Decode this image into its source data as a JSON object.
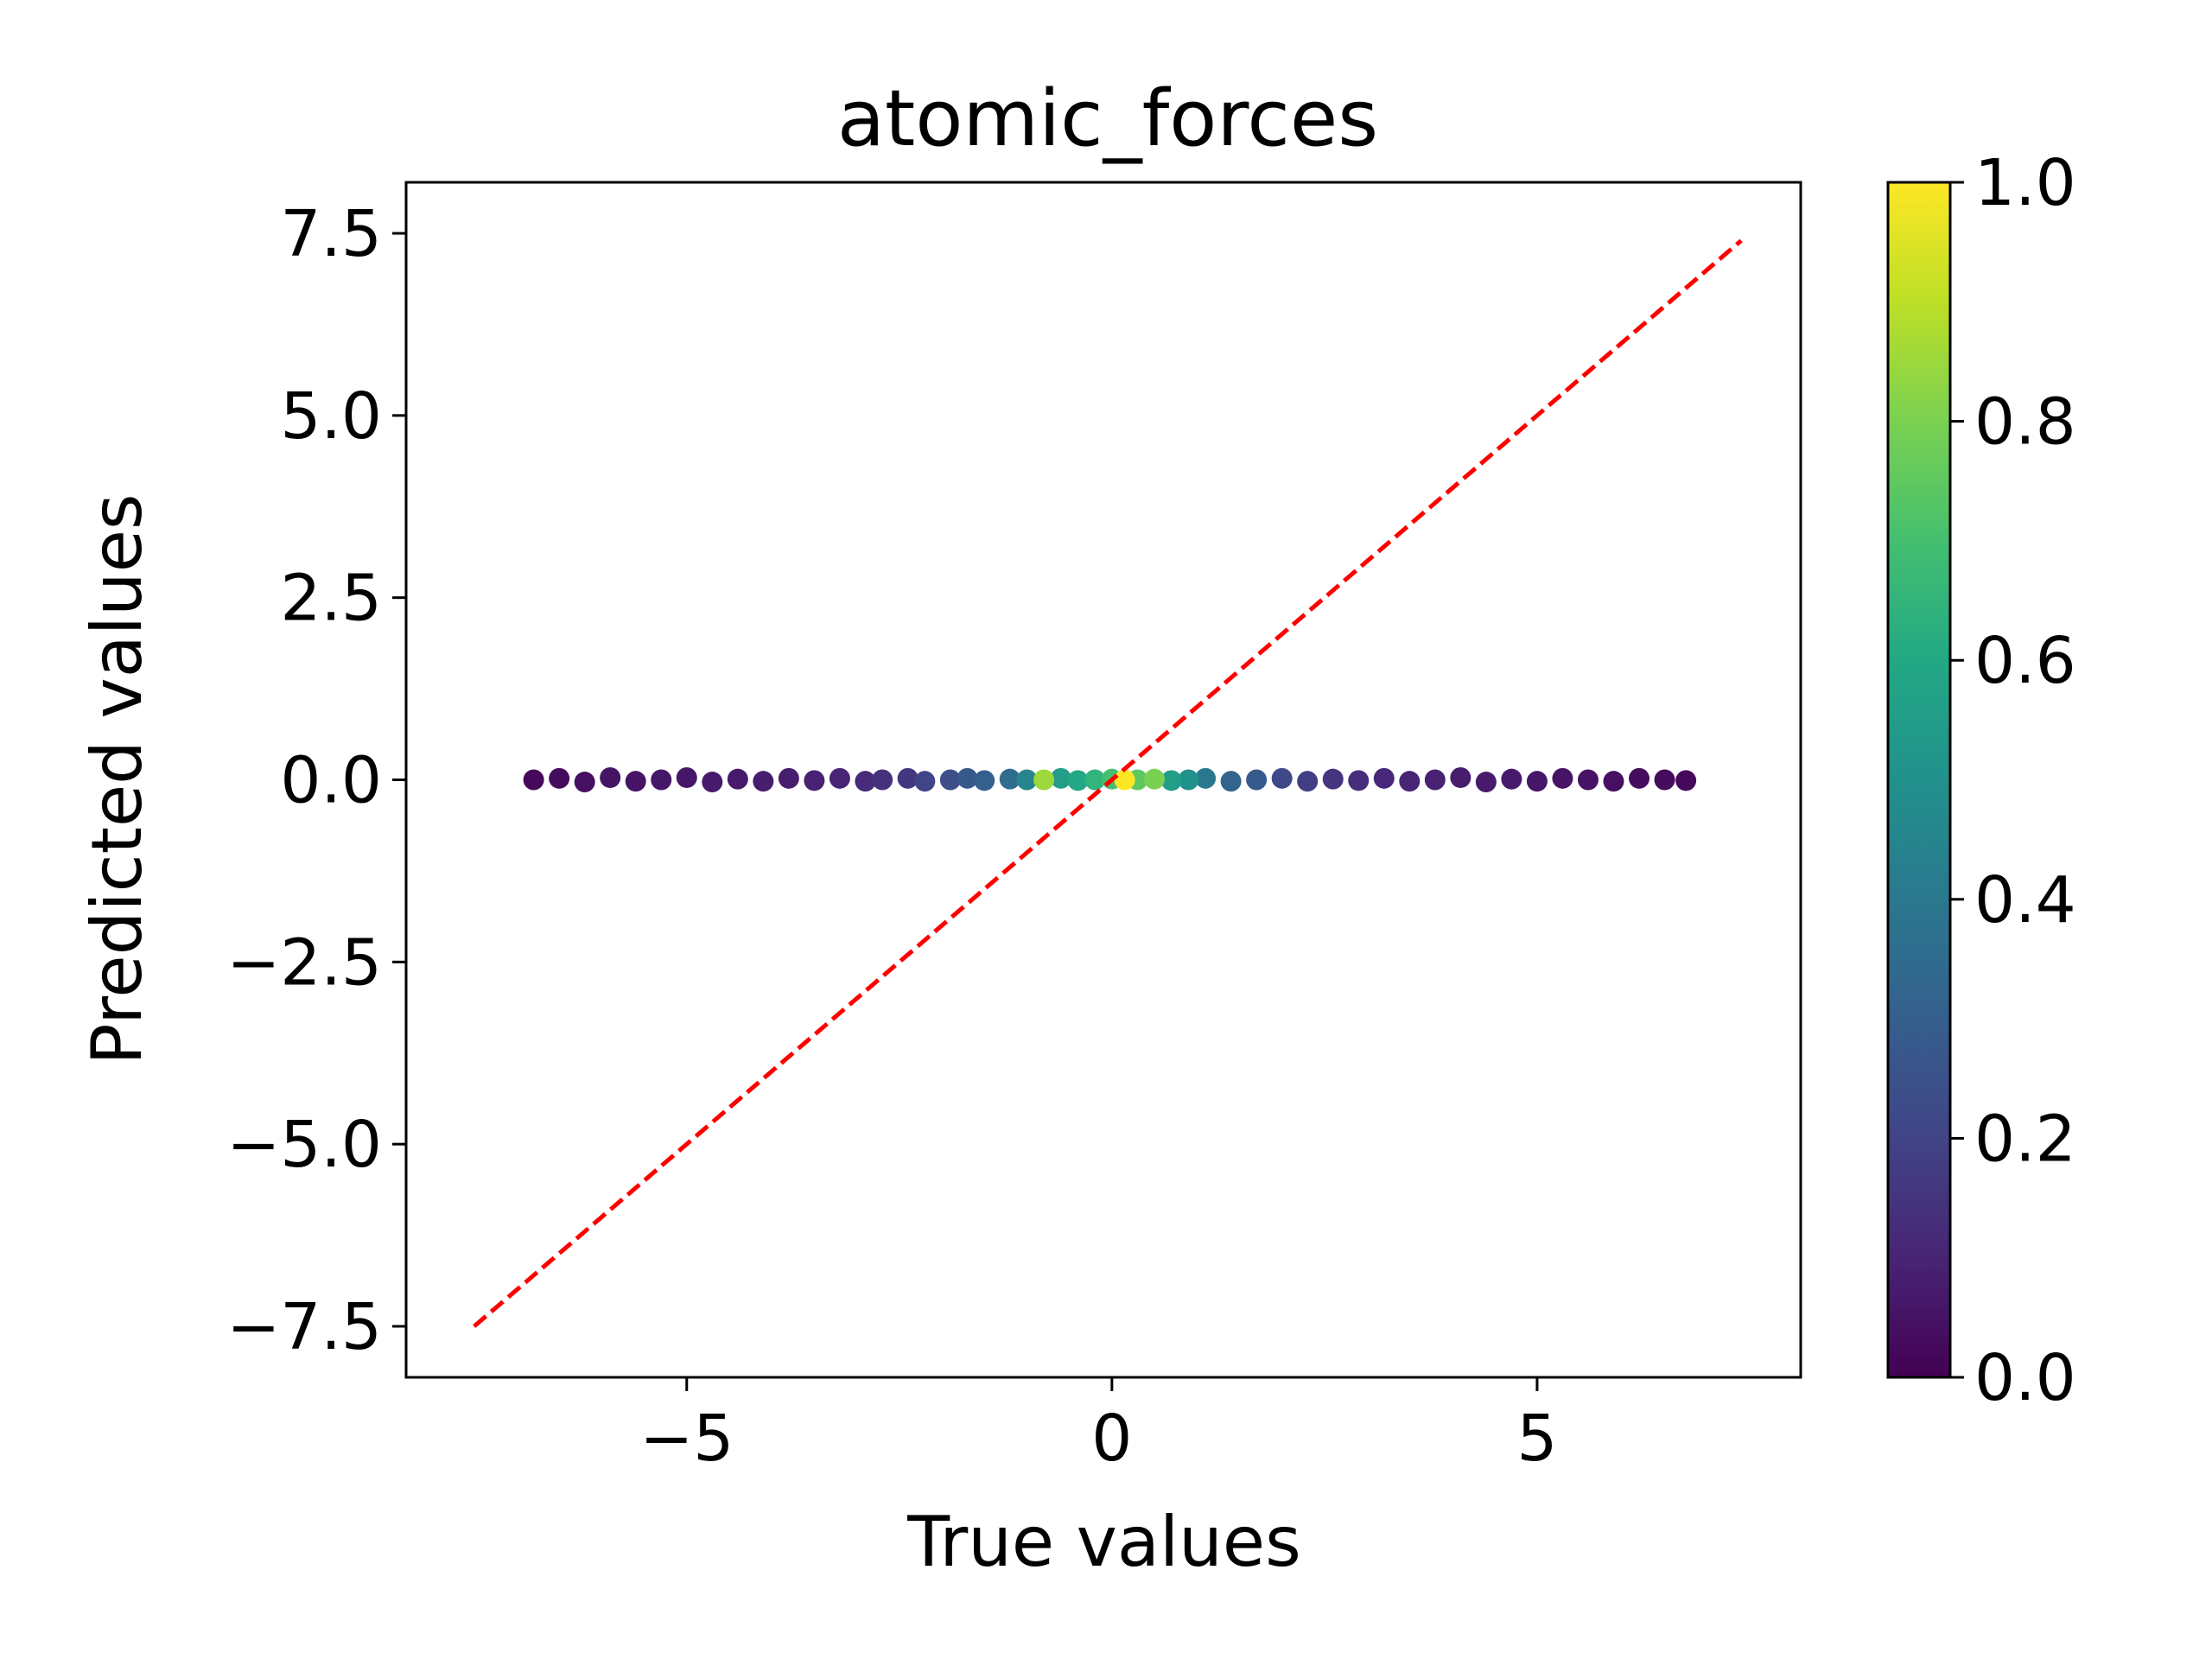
{
  "chart_data": {
    "type": "scatter",
    "title": "atomic_forces",
    "xlabel": "True values",
    "ylabel": "Predicted values",
    "xlim": [
      -8.3,
      8.1
    ],
    "ylim": [
      -8.2,
      8.2
    ],
    "x_ticks": [
      -5,
      0,
      5
    ],
    "x_tick_labels": [
      "−5",
      "0",
      "5"
    ],
    "y_ticks": [
      -7.5,
      -5.0,
      -2.5,
      0.0,
      2.5,
      5.0,
      7.5
    ],
    "y_tick_labels": [
      "−7.5",
      "−5.0",
      "−2.5",
      "0.0",
      "2.5",
      "5.0",
      "7.5"
    ],
    "grid": false,
    "reference_line": {
      "x": [
        -7.5,
        7.4
      ],
      "y": [
        -7.5,
        7.4
      ],
      "color": "#ff0000",
      "style": "dashed"
    },
    "colorbar": {
      "colormap": "viridis",
      "range": [
        0.0,
        1.0
      ],
      "ticks": [
        0.0,
        0.2,
        0.4,
        0.6,
        0.8,
        1.0
      ],
      "tick_labels": [
        "0.0",
        "0.2",
        "0.4",
        "0.6",
        "0.8",
        "1.0"
      ]
    },
    "points": [
      {
        "x": -6.8,
        "y": 0.0,
        "c": 0.02
      },
      {
        "x": -6.5,
        "y": 0.02,
        "c": 0.03
      },
      {
        "x": -6.2,
        "y": -0.03,
        "c": 0.04
      },
      {
        "x": -5.9,
        "y": 0.03,
        "c": 0.05
      },
      {
        "x": -5.6,
        "y": -0.02,
        "c": 0.05
      },
      {
        "x": -5.3,
        "y": 0.0,
        "c": 0.06
      },
      {
        "x": -5.0,
        "y": 0.03,
        "c": 0.06
      },
      {
        "x": -4.7,
        "y": -0.03,
        "c": 0.07
      },
      {
        "x": -4.4,
        "y": 0.01,
        "c": 0.07
      },
      {
        "x": -4.1,
        "y": -0.02,
        "c": 0.08
      },
      {
        "x": -3.8,
        "y": 0.02,
        "c": 0.08
      },
      {
        "x": -3.5,
        "y": -0.01,
        "c": 0.09
      },
      {
        "x": -3.2,
        "y": 0.02,
        "c": 0.1
      },
      {
        "x": -2.9,
        "y": -0.02,
        "c": 0.12
      },
      {
        "x": -2.7,
        "y": 0.0,
        "c": 0.14
      },
      {
        "x": -2.4,
        "y": 0.02,
        "c": 0.16
      },
      {
        "x": -2.2,
        "y": -0.02,
        "c": 0.2
      },
      {
        "x": -1.9,
        "y": 0.0,
        "c": 0.24
      },
      {
        "x": -1.7,
        "y": 0.02,
        "c": 0.28
      },
      {
        "x": -1.5,
        "y": -0.01,
        "c": 0.3
      },
      {
        "x": -1.2,
        "y": 0.01,
        "c": 0.35
      },
      {
        "x": -1.0,
        "y": 0.0,
        "c": 0.45
      },
      {
        "x": -0.8,
        "y": 0.0,
        "c": 0.85
      },
      {
        "x": -0.6,
        "y": 0.02,
        "c": 0.55
      },
      {
        "x": -0.4,
        "y": -0.01,
        "c": 0.6
      },
      {
        "x": -0.2,
        "y": 0.0,
        "c": 0.65
      },
      {
        "x": 0.0,
        "y": 0.01,
        "c": 0.7
      },
      {
        "x": 0.15,
        "y": 0.0,
        "c": 1.0
      },
      {
        "x": 0.3,
        "y": 0.0,
        "c": 0.75
      },
      {
        "x": 0.5,
        "y": 0.01,
        "c": 0.8
      },
      {
        "x": 0.7,
        "y": -0.01,
        "c": 0.55
      },
      {
        "x": 0.9,
        "y": 0.0,
        "c": 0.5
      },
      {
        "x": 1.1,
        "y": 0.02,
        "c": 0.4
      },
      {
        "x": 1.4,
        "y": -0.02,
        "c": 0.32
      },
      {
        "x": 1.7,
        "y": 0.0,
        "c": 0.28
      },
      {
        "x": 2.0,
        "y": 0.02,
        "c": 0.22
      },
      {
        "x": 2.3,
        "y": -0.02,
        "c": 0.18
      },
      {
        "x": 2.6,
        "y": 0.01,
        "c": 0.15
      },
      {
        "x": 2.9,
        "y": -0.01,
        "c": 0.13
      },
      {
        "x": 3.2,
        "y": 0.02,
        "c": 0.11
      },
      {
        "x": 3.5,
        "y": -0.02,
        "c": 0.1
      },
      {
        "x": 3.8,
        "y": 0.0,
        "c": 0.09
      },
      {
        "x": 4.1,
        "y": 0.03,
        "c": 0.08
      },
      {
        "x": 4.4,
        "y": -0.03,
        "c": 0.07
      },
      {
        "x": 4.7,
        "y": 0.01,
        "c": 0.07
      },
      {
        "x": 5.0,
        "y": -0.02,
        "c": 0.06
      },
      {
        "x": 5.3,
        "y": 0.02,
        "c": 0.05
      },
      {
        "x": 5.6,
        "y": 0.0,
        "c": 0.05
      },
      {
        "x": 5.9,
        "y": -0.02,
        "c": 0.04
      },
      {
        "x": 6.2,
        "y": 0.02,
        "c": 0.03
      },
      {
        "x": 6.5,
        "y": 0.0,
        "c": 0.03
      },
      {
        "x": 6.75,
        "y": -0.01,
        "c": 0.02
      }
    ]
  }
}
